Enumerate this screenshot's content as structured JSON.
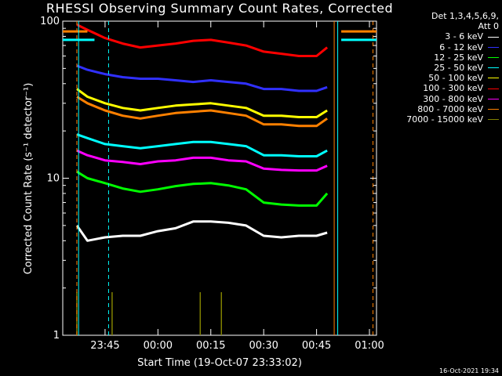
{
  "chart_data": {
    "type": "line",
    "title": "RHESSI Observing Summary Count Rates, Corrected",
    "ylabel": "Corrected Count Rate (s⁻¹ detector⁻¹)",
    "xlabel": "Start Time (19-Oct-07 23:33:02)",
    "yscale": "log",
    "ylim": [
      1,
      100
    ],
    "xlim": [
      "23:33",
      "01:02"
    ],
    "x_ticks": [
      "23:45",
      "00:00",
      "00:15",
      "00:30",
      "00:45",
      "01:00"
    ],
    "y_ticks": [
      "1",
      "10",
      "100"
    ],
    "legend_header": [
      "Det 1,3,4,5,6,9,",
      "Att 0"
    ],
    "legend_position": "right",
    "series": [
      {
        "name": "3 - 6 keV",
        "color": "#ffffff",
        "points": [
          [
            "23:37",
            5
          ],
          [
            "23:40",
            4
          ],
          [
            "23:45",
            4.2
          ],
          [
            "23:50",
            4.3
          ],
          [
            "23:55",
            4.3
          ],
          [
            "00:00",
            4.6
          ],
          [
            "00:05",
            4.8
          ],
          [
            "00:10",
            5.3
          ],
          [
            "00:15",
            5.3
          ],
          [
            "00:20",
            5.2
          ],
          [
            "00:25",
            5.0
          ],
          [
            "00:30",
            4.3
          ],
          [
            "00:35",
            4.2
          ],
          [
            "00:40",
            4.3
          ],
          [
            "00:45",
            4.3
          ],
          [
            "00:48",
            4.5
          ]
        ]
      },
      {
        "name": "6 - 12 keV",
        "color": "#3030ff",
        "points": [
          [
            "23:37",
            52
          ],
          [
            "23:40",
            49
          ],
          [
            "23:45",
            46
          ],
          [
            "23:50",
            44
          ],
          [
            "23:55",
            43
          ],
          [
            "00:00",
            43
          ],
          [
            "00:05",
            42
          ],
          [
            "00:10",
            41
          ],
          [
            "00:15",
            42
          ],
          [
            "00:20",
            41
          ],
          [
            "00:25",
            40
          ],
          [
            "00:30",
            37
          ],
          [
            "00:35",
            37
          ],
          [
            "00:40",
            36
          ],
          [
            "00:45",
            36
          ],
          [
            "00:48",
            38
          ]
        ]
      },
      {
        "name": "12 - 25 keV",
        "color": "#00ff00",
        "points": [
          [
            "23:37",
            11
          ],
          [
            "23:40",
            10
          ],
          [
            "23:45",
            9.3
          ],
          [
            "23:50",
            8.6
          ],
          [
            "23:55",
            8.2
          ],
          [
            "00:00",
            8.5
          ],
          [
            "00:05",
            8.9
          ],
          [
            "00:10",
            9.2
          ],
          [
            "00:15",
            9.3
          ],
          [
            "00:20",
            9.0
          ],
          [
            "00:25",
            8.5
          ],
          [
            "00:30",
            7.0
          ],
          [
            "00:35",
            6.8
          ],
          [
            "00:40",
            6.7
          ],
          [
            "00:45",
            6.7
          ],
          [
            "00:48",
            8.0
          ]
        ]
      },
      {
        "name": "25 - 50 keV",
        "color": "#00ffff",
        "points": [
          [
            "23:37",
            19
          ],
          [
            "23:40",
            18
          ],
          [
            "23:45",
            16.5
          ],
          [
            "23:50",
            16
          ],
          [
            "23:55",
            15.5
          ],
          [
            "00:00",
            16
          ],
          [
            "00:05",
            16.5
          ],
          [
            "00:10",
            17
          ],
          [
            "00:15",
            17
          ],
          [
            "00:20",
            16.5
          ],
          [
            "00:25",
            16
          ],
          [
            "00:30",
            14
          ],
          [
            "00:35",
            14
          ],
          [
            "00:40",
            13.8
          ],
          [
            "00:45",
            13.8
          ],
          [
            "00:48",
            15
          ]
        ]
      },
      {
        "name": "50 - 100 keV",
        "color": "#ffff00",
        "points": [
          [
            "23:37",
            37
          ],
          [
            "23:40",
            33
          ],
          [
            "23:45",
            30
          ],
          [
            "23:50",
            28
          ],
          [
            "23:55",
            27
          ],
          [
            "00:00",
            28
          ],
          [
            "00:05",
            29
          ],
          [
            "00:10",
            29.5
          ],
          [
            "00:15",
            30
          ],
          [
            "00:20",
            29
          ],
          [
            "00:25",
            28
          ],
          [
            "00:30",
            25
          ],
          [
            "00:35",
            25
          ],
          [
            "00:40",
            24.5
          ],
          [
            "00:45",
            24.5
          ],
          [
            "00:48",
            27
          ]
        ]
      },
      {
        "name": "100 - 300 keV",
        "color": "#ff0000",
        "points": [
          [
            "23:37",
            95
          ],
          [
            "23:40",
            88
          ],
          [
            "23:45",
            78
          ],
          [
            "23:50",
            72
          ],
          [
            "23:55",
            68
          ],
          [
            "00:00",
            70
          ],
          [
            "00:05",
            72
          ],
          [
            "00:10",
            75
          ],
          [
            "00:15",
            76
          ],
          [
            "00:20",
            73
          ],
          [
            "00:25",
            70
          ],
          [
            "00:30",
            64
          ],
          [
            "00:35",
            62
          ],
          [
            "00:40",
            60
          ],
          [
            "00:45",
            60
          ],
          [
            "00:48",
            68
          ]
        ]
      },
      {
        "name": "300 - 800 keV",
        "color": "#ff00ff",
        "points": [
          [
            "23:37",
            15
          ],
          [
            "23:40",
            14
          ],
          [
            "23:45",
            13
          ],
          [
            "23:50",
            12.7
          ],
          [
            "23:55",
            12.3
          ],
          [
            "00:00",
            12.8
          ],
          [
            "00:05",
            13
          ],
          [
            "00:10",
            13.5
          ],
          [
            "00:15",
            13.5
          ],
          [
            "00:20",
            13
          ],
          [
            "00:25",
            12.8
          ],
          [
            "00:30",
            11.5
          ],
          [
            "00:35",
            11.3
          ],
          [
            "00:40",
            11.2
          ],
          [
            "00:45",
            11.2
          ],
          [
            "00:48",
            12
          ]
        ]
      },
      {
        "name": "800 - 7000 keV",
        "color": "#ff8000",
        "points": [
          [
            "23:37",
            33
          ],
          [
            "23:40",
            30
          ],
          [
            "23:45",
            27
          ],
          [
            "23:50",
            25
          ],
          [
            "23:55",
            24
          ],
          [
            "00:00",
            25
          ],
          [
            "00:05",
            26
          ],
          [
            "00:10",
            26.5
          ],
          [
            "00:15",
            27
          ],
          [
            "00:20",
            26
          ],
          [
            "00:25",
            25
          ],
          [
            "00:30",
            22
          ],
          [
            "00:35",
            22
          ],
          [
            "00:40",
            21.5
          ],
          [
            "00:45",
            21.5
          ],
          [
            "00:48",
            24
          ]
        ]
      },
      {
        "name": "7000 - 15000 keV",
        "color": "#808000",
        "points": [
          [
            "23:37",
            1
          ],
          [
            "23:47",
            1
          ],
          [
            "00:12",
            1
          ],
          [
            "00:18",
            1
          ]
        ]
      }
    ],
    "annotations": {
      "attenuator_bar": {
        "color": "#ff8000",
        "segments": [
          [
            "23:33",
            "23:40"
          ],
          [
            "00:52",
            "01:02"
          ]
        ],
        "level": 86
      },
      "cyan_bar": {
        "color": "#00ffff",
        "segments": [
          [
            "23:33",
            "23:42"
          ],
          [
            "00:52",
            "01:02"
          ]
        ],
        "level": 76
      },
      "vertical_lines_orange_dashed": [
        "23:37",
        "01:01"
      ],
      "vertical_lines_cyan_dashed": [
        "23:46"
      ],
      "vertical_lines_cyan_solid": [
        "23:37:30",
        "00:51"
      ],
      "vertical_lines_orange_solid": [
        "00:50"
      ]
    }
  },
  "footer_text": "16-Oct-2021 19:34"
}
